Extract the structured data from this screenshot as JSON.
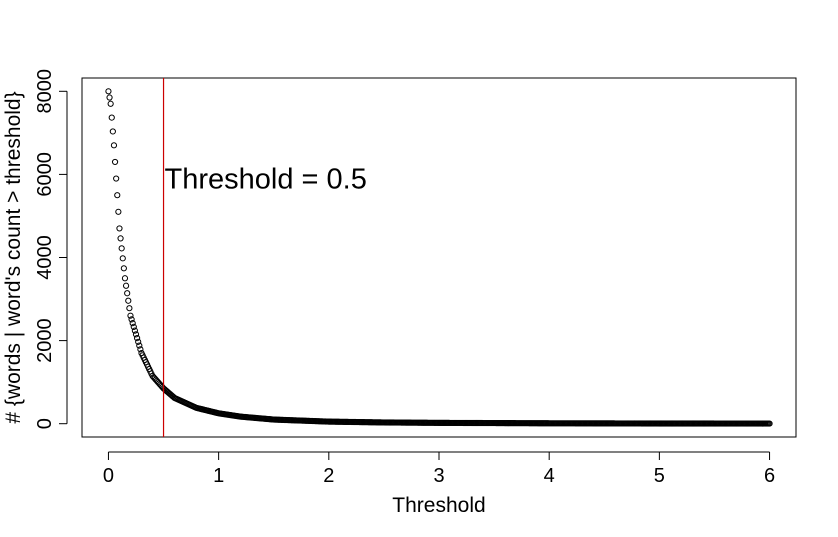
{
  "chart_data": {
    "type": "scatter",
    "title": "",
    "xlabel": "Threshold",
    "ylabel": "# {words | word's count > threshold}",
    "xlim": [
      -0.24,
      6.24
    ],
    "ylim": [
      -320,
      8320
    ],
    "xticks": [
      0,
      1,
      2,
      3,
      4,
      5,
      6
    ],
    "xtick_labels": [
      "0",
      "1",
      "2",
      "3",
      "4",
      "5",
      "6"
    ],
    "yticks": [
      0,
      2000,
      4000,
      6000,
      8000
    ],
    "ytick_labels": [
      "0",
      "2000",
      "4000",
      "6000",
      "8000"
    ],
    "grid": false,
    "legend": "none",
    "marker": "open-circle",
    "marker_color": "#000000",
    "vline": {
      "x": 0.5,
      "color": "#cc0000"
    },
    "annotation": {
      "text": "Threshold = 0.5",
      "x": 0.5,
      "y": 5900
    },
    "series": [
      {
        "curve": {
          "x": [
            0,
            0.02,
            0.05,
            0.1,
            0.15,
            0.2,
            0.3,
            0.4,
            0.5,
            0.6,
            0.8,
            1.0,
            1.2,
            1.5,
            2.0,
            2.5,
            3.0,
            4.0,
            5.0,
            6.0
          ],
          "y": [
            8000,
            7700,
            6700,
            4700,
            3500,
            2600,
            1700,
            1150,
            850,
            620,
            380,
            250,
            170,
            100,
            50,
            30,
            20,
            10,
            5,
            3
          ]
        },
        "dense_x_max": 2.0,
        "x_step": 0.01
      }
    ]
  }
}
